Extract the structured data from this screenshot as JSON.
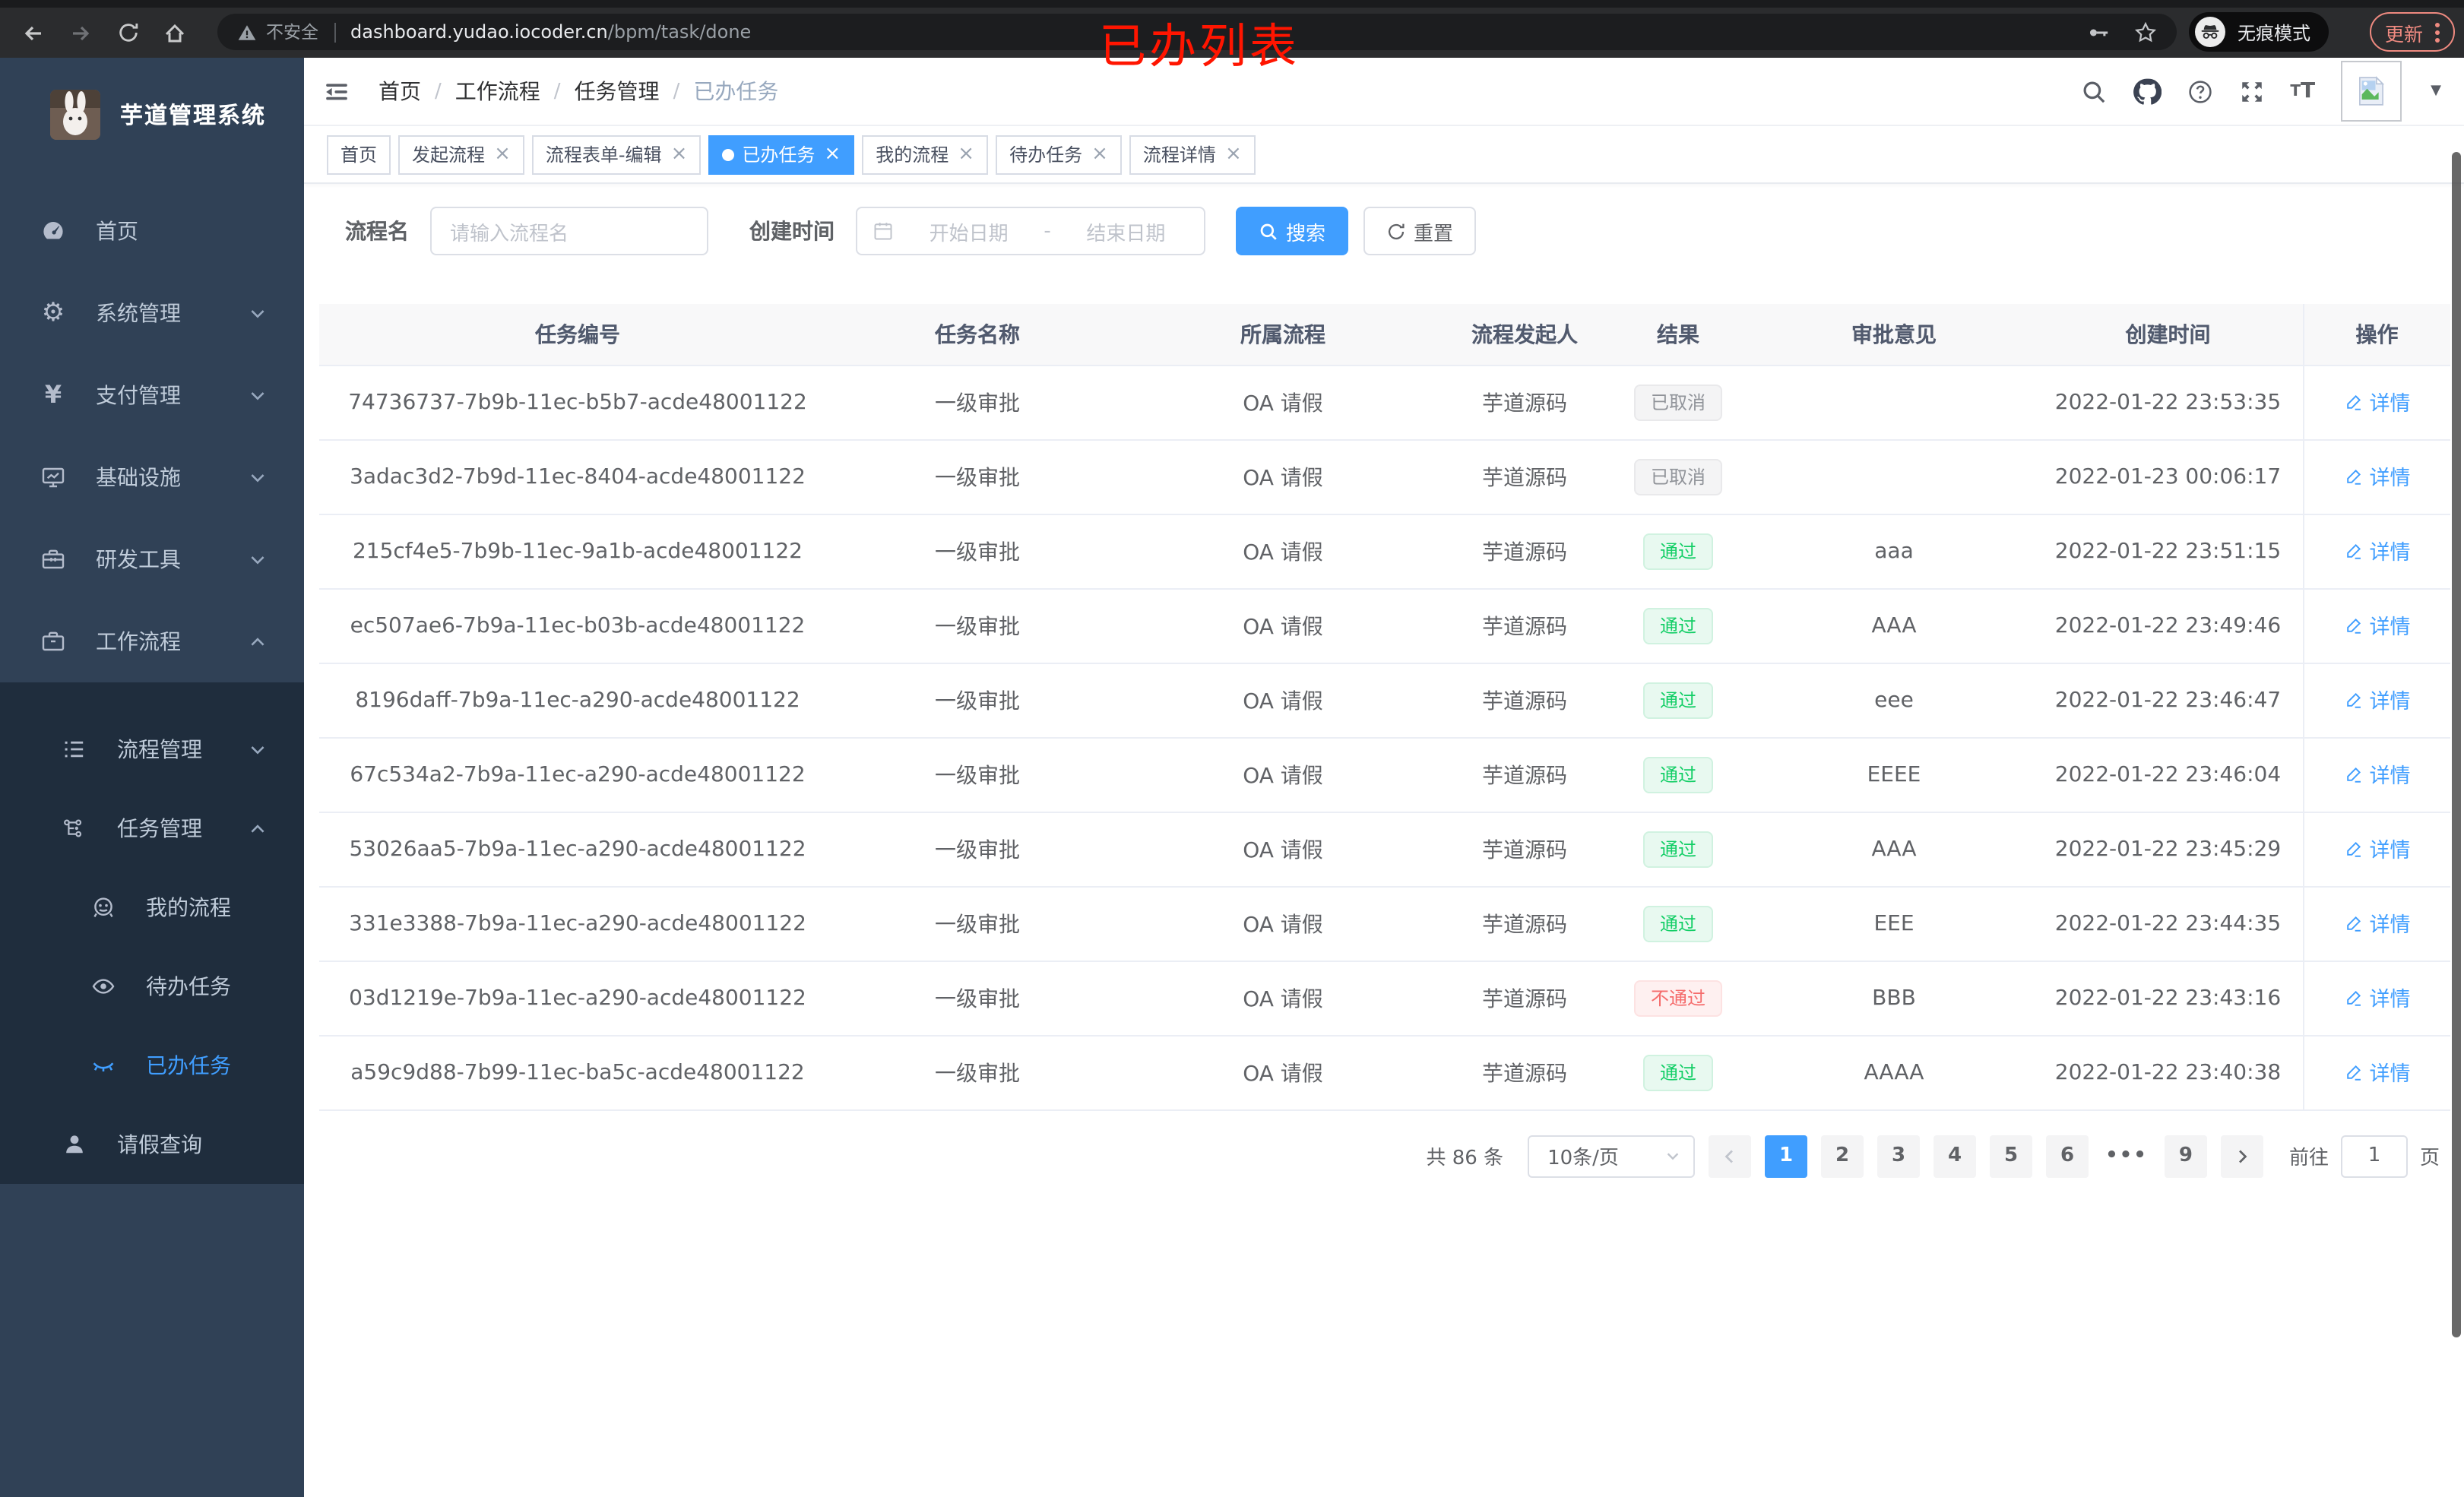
{
  "browser": {
    "security_label": "不安全",
    "url_host": "dashboard.yudao.iocoder.cn",
    "url_path": "/bpm/task/done",
    "annotation": "已办列表",
    "incognito_label": "无痕模式",
    "update_label": "更新"
  },
  "colors": {
    "accent": "#409eff",
    "success": "#13ce66",
    "danger": "#f56c6c",
    "info": "#909399",
    "annotation_red": "#ff1500"
  },
  "sidebar": {
    "app_title": "芋道管理系统",
    "items": [
      {
        "icon": "gauge-icon",
        "label": "首页",
        "indent": 0,
        "chevron": "",
        "sub": false,
        "active": false
      },
      {
        "icon": "gear-icon",
        "label": "系统管理",
        "indent": 0,
        "chevron": "down",
        "sub": false,
        "active": false
      },
      {
        "icon": "yen-icon",
        "label": "支付管理",
        "indent": 0,
        "chevron": "down",
        "sub": false,
        "active": false
      },
      {
        "icon": "monitor-icon",
        "label": "基础设施",
        "indent": 0,
        "chevron": "down",
        "sub": false,
        "active": false
      },
      {
        "icon": "toolbox-icon",
        "label": "研发工具",
        "indent": 0,
        "chevron": "down",
        "sub": false,
        "active": false
      },
      {
        "icon": "briefcase-icon",
        "label": "工作流程",
        "indent": 0,
        "chevron": "up",
        "sub": false,
        "active": false
      },
      {
        "icon": "list-icon",
        "label": "流程管理",
        "indent": 1,
        "chevron": "down",
        "sub": true,
        "active": false
      },
      {
        "icon": "flow-tree-icon",
        "label": "任务管理",
        "indent": 1,
        "chevron": "up",
        "sub": true,
        "active": false
      },
      {
        "icon": "robot-icon",
        "label": "我的流程",
        "indent": 2,
        "chevron": "",
        "sub": true,
        "active": false
      },
      {
        "icon": "eye-icon",
        "label": "待办任务",
        "indent": 2,
        "chevron": "",
        "sub": true,
        "active": false
      },
      {
        "icon": "eye-closed-icon",
        "label": "已办任务",
        "indent": 2,
        "chevron": "",
        "sub": true,
        "active": true
      },
      {
        "icon": "user-icon",
        "label": "请假查询",
        "indent": 1,
        "chevron": "",
        "sub": true,
        "active": false
      }
    ]
  },
  "header": {
    "breadcrumb": [
      "首页",
      "工作流程",
      "任务管理",
      "已办任务"
    ]
  },
  "tabs": [
    {
      "label": "首页",
      "closable": false,
      "active": false
    },
    {
      "label": "发起流程",
      "closable": true,
      "active": false
    },
    {
      "label": "流程表单-编辑",
      "closable": true,
      "active": false
    },
    {
      "label": "已办任务",
      "closable": true,
      "active": true
    },
    {
      "label": "我的流程",
      "closable": true,
      "active": false
    },
    {
      "label": "待办任务",
      "closable": true,
      "active": false
    },
    {
      "label": "流程详情",
      "closable": true,
      "active": false
    }
  ],
  "filters": {
    "name_label": "流程名",
    "name_placeholder": "请输入流程名",
    "time_label": "创建时间",
    "start_placeholder": "开始日期",
    "range_separator": "-",
    "end_placeholder": "结束日期",
    "search_label": "搜索",
    "reset_label": "重置"
  },
  "table": {
    "columns": [
      "任务编号",
      "任务名称",
      "所属流程",
      "流程发起人",
      "结果",
      "审批意见",
      "创建时间",
      "操作"
    ],
    "action_label": "详情",
    "rows": [
      {
        "id": "74736737-7b9b-11ec-b5b7-acde48001122",
        "name": "一级审批",
        "flow": "OA 请假",
        "initiator": "芋道源码",
        "result": "已取消",
        "result_type": "info",
        "opinion": "",
        "created": "2022-01-22 23:53:35"
      },
      {
        "id": "3adac3d2-7b9d-11ec-8404-acde48001122",
        "name": "一级审批",
        "flow": "OA 请假",
        "initiator": "芋道源码",
        "result": "已取消",
        "result_type": "info",
        "opinion": "",
        "created": "2022-01-23 00:06:17"
      },
      {
        "id": "215cf4e5-7b9b-11ec-9a1b-acde48001122",
        "name": "一级审批",
        "flow": "OA 请假",
        "initiator": "芋道源码",
        "result": "通过",
        "result_type": "success",
        "opinion": "aaa",
        "created": "2022-01-22 23:51:15"
      },
      {
        "id": "ec507ae6-7b9a-11ec-b03b-acde48001122",
        "name": "一级审批",
        "flow": "OA 请假",
        "initiator": "芋道源码",
        "result": "通过",
        "result_type": "success",
        "opinion": "AAA",
        "created": "2022-01-22 23:49:46"
      },
      {
        "id": "8196daff-7b9a-11ec-a290-acde48001122",
        "name": "一级审批",
        "flow": "OA 请假",
        "initiator": "芋道源码",
        "result": "通过",
        "result_type": "success",
        "opinion": "eee",
        "created": "2022-01-22 23:46:47"
      },
      {
        "id": "67c534a2-7b9a-11ec-a290-acde48001122",
        "name": "一级审批",
        "flow": "OA 请假",
        "initiator": "芋道源码",
        "result": "通过",
        "result_type": "success",
        "opinion": "EEEE",
        "created": "2022-01-22 23:46:04"
      },
      {
        "id": "53026aa5-7b9a-11ec-a290-acde48001122",
        "name": "一级审批",
        "flow": "OA 请假",
        "initiator": "芋道源码",
        "result": "通过",
        "result_type": "success",
        "opinion": "AAA",
        "created": "2022-01-22 23:45:29"
      },
      {
        "id": "331e3388-7b9a-11ec-a290-acde48001122",
        "name": "一级审批",
        "flow": "OA 请假",
        "initiator": "芋道源码",
        "result": "通过",
        "result_type": "success",
        "opinion": "EEE",
        "created": "2022-01-22 23:44:35"
      },
      {
        "id": "03d1219e-7b9a-11ec-a290-acde48001122",
        "name": "一级审批",
        "flow": "OA 请假",
        "initiator": "芋道源码",
        "result": "不通过",
        "result_type": "danger",
        "opinion": "BBB",
        "created": "2022-01-22 23:43:16"
      },
      {
        "id": "a59c9d88-7b99-11ec-ba5c-acde48001122",
        "name": "一级审批",
        "flow": "OA 请假",
        "initiator": "芋道源码",
        "result": "通过",
        "result_type": "success",
        "opinion": "AAAA",
        "created": "2022-01-22 23:40:38"
      }
    ]
  },
  "pagination": {
    "total_label": "共 86 条",
    "page_size_label": "10条/页",
    "pages": [
      "1",
      "2",
      "3",
      "4",
      "5",
      "6",
      "...",
      "9"
    ],
    "active_page": "1",
    "goto_label": "前往",
    "goto_value": "1",
    "page_unit": "页"
  }
}
